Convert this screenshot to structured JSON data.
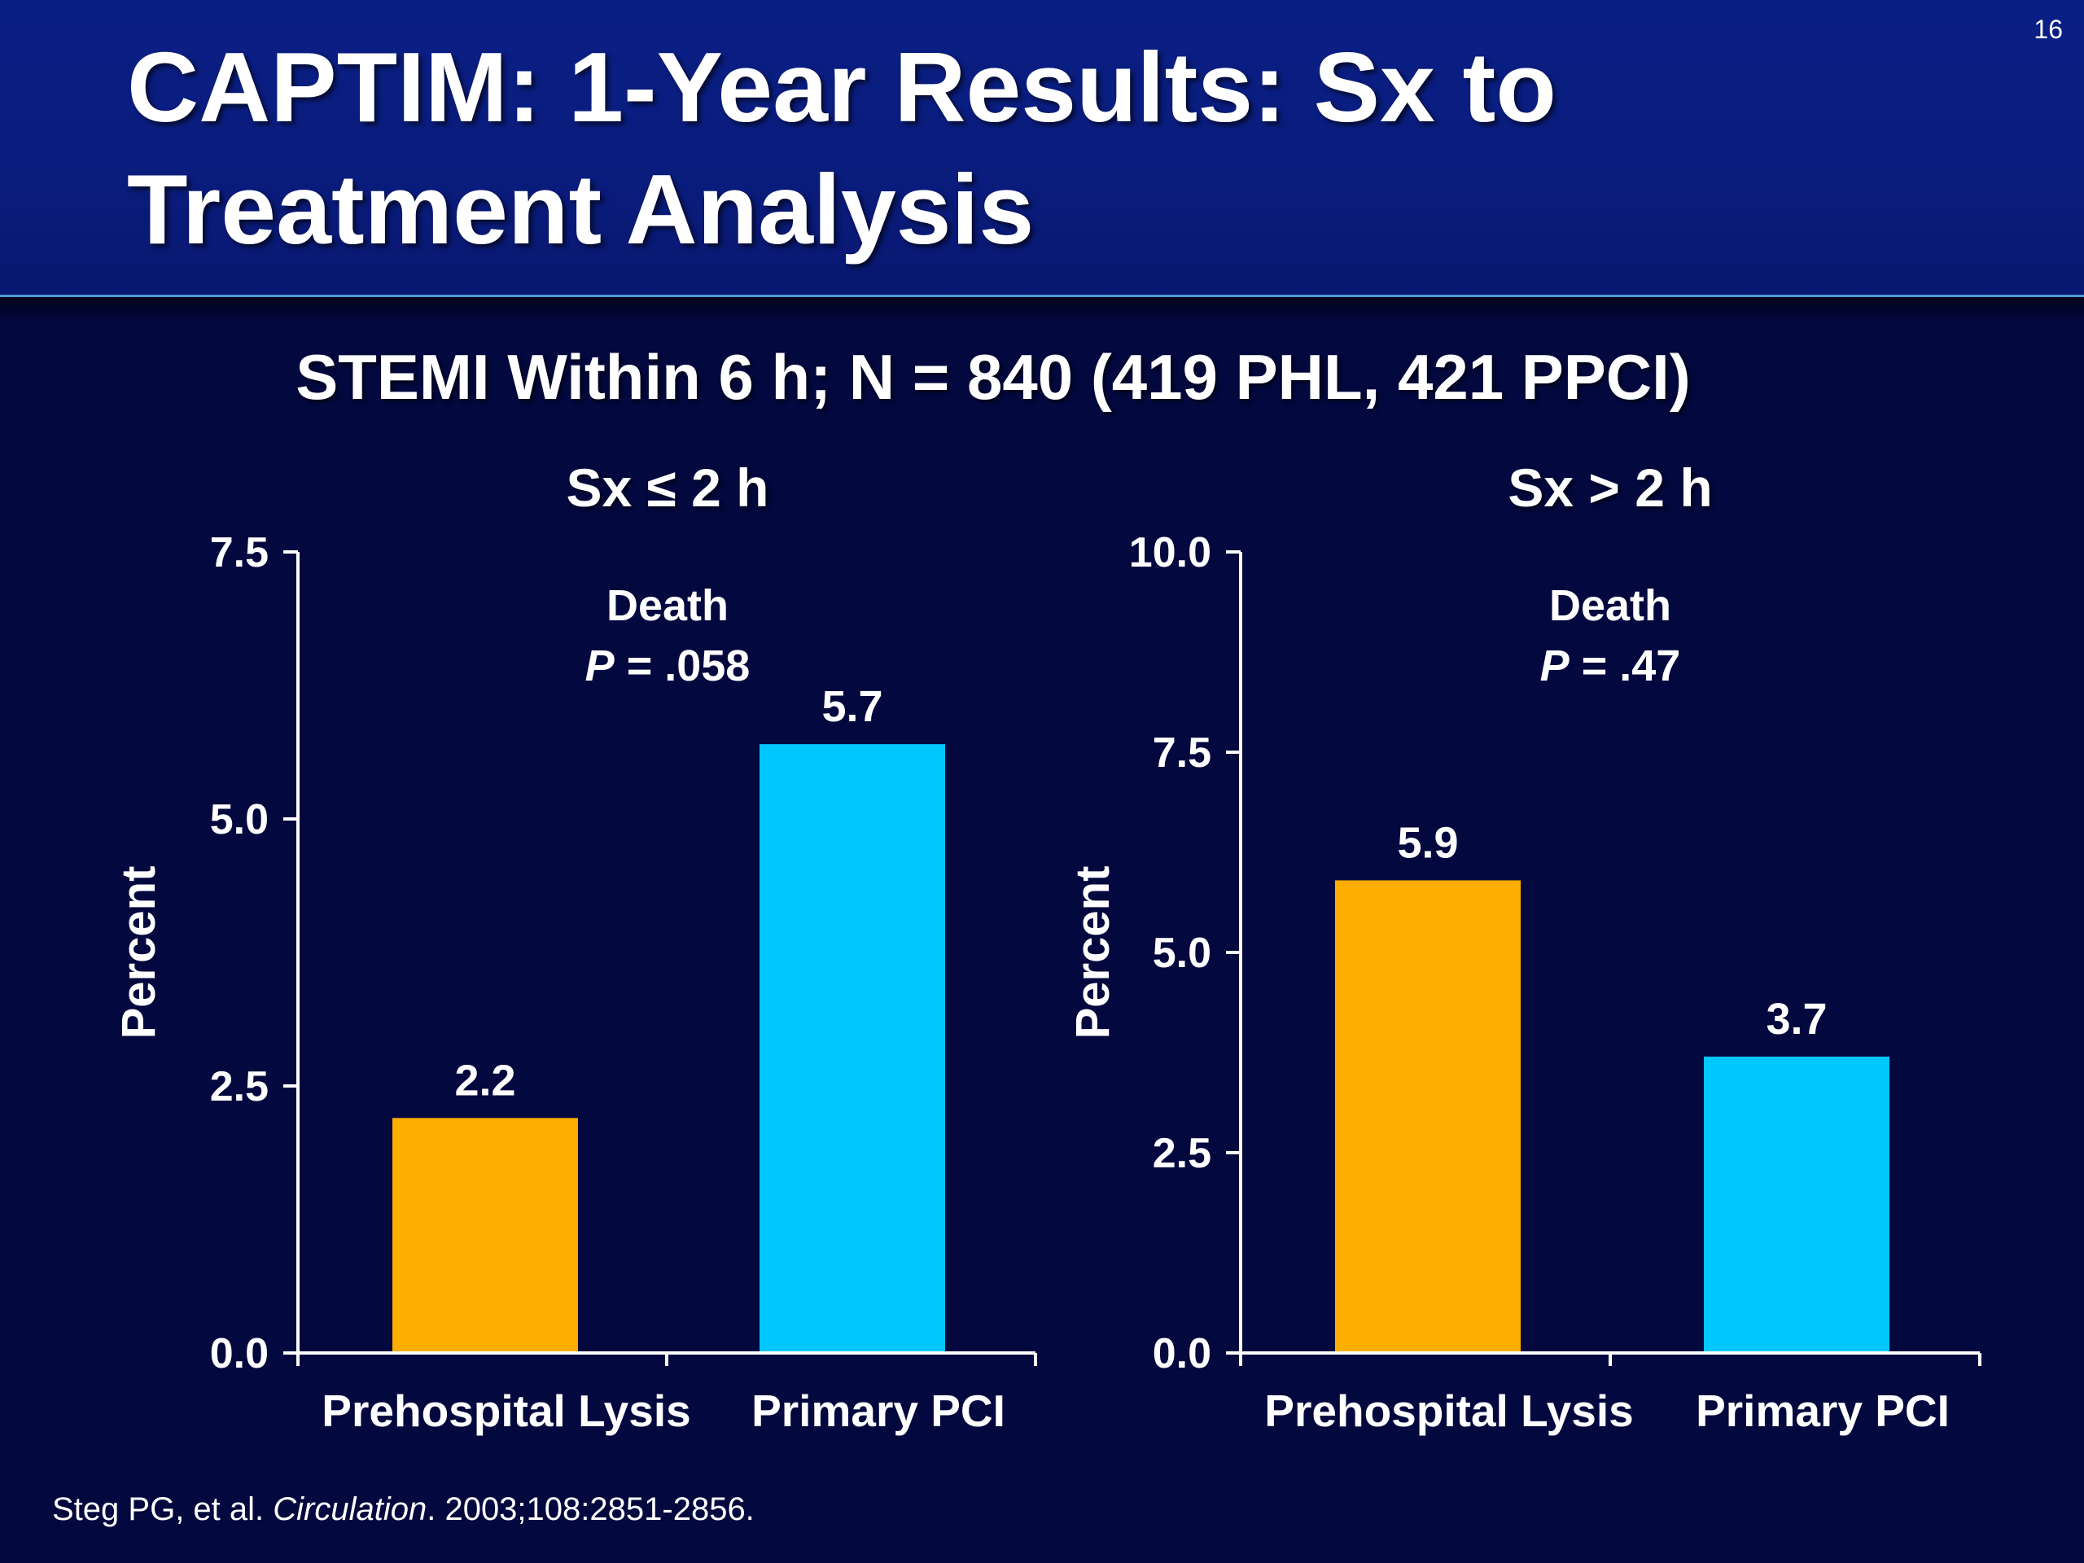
{
  "slide": {
    "number": "16",
    "title": "CAPTIM: 1-Year Results: Sx to Treatment Analysis",
    "subtitle": "STEMI Within 6 h; N = 840 (419 PHL, 421 PPCI)",
    "citation_prefix": "Steg PG, et al. ",
    "citation_journal": "Circulation",
    "citation_suffix": ". 2003;108:2851-2856."
  },
  "colors": {
    "prehospital_lysis": "#fdae00",
    "primary_pci": "#00c8ff",
    "background": "#03083e",
    "header": "#0a1f86"
  },
  "chart_data": [
    {
      "type": "bar",
      "title": "Sx ≤ 2 h",
      "annotation_line1": "Death",
      "annotation_p": "P",
      "annotation_p_value": " = .058",
      "ylabel": "Percent",
      "ylim": [
        0,
        7.5
      ],
      "yticks": [
        "0.0",
        "2.5",
        "5.0",
        "7.5"
      ],
      "categories": [
        "Prehospital Lysis",
        "Primary PCI"
      ],
      "values": [
        2.2,
        5.7
      ],
      "value_labels": [
        "2.2",
        "5.7"
      ]
    },
    {
      "type": "bar",
      "title": "Sx > 2 h",
      "annotation_line1": "Death",
      "annotation_p": "P",
      "annotation_p_value": " = .47",
      "ylabel": "Percent",
      "ylim": [
        0,
        10
      ],
      "yticks": [
        "0.0",
        "2.5",
        "5.0",
        "7.5",
        "10.0"
      ],
      "categories": [
        "Prehospital Lysis",
        "Primary PCI"
      ],
      "values": [
        5.9,
        3.7
      ],
      "value_labels": [
        "5.9",
        "3.7"
      ]
    }
  ]
}
